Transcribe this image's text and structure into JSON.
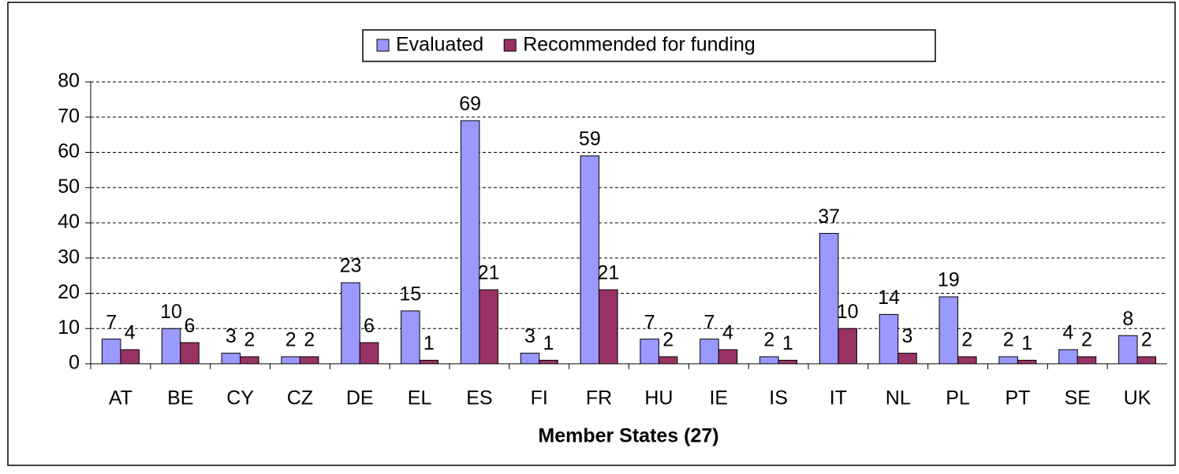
{
  "chart_data": {
    "type": "bar",
    "categories": [
      "AT",
      "BE",
      "CY",
      "CZ",
      "DE",
      "EL",
      "ES",
      "FI",
      "FR",
      "HU",
      "IE",
      "IS",
      "IT",
      "NL",
      "PL",
      "PT",
      "SE",
      "UK"
    ],
    "series": [
      {
        "name": "Evaluated",
        "color": "#9999ff",
        "values": [
          7,
          10,
          3,
          2,
          23,
          15,
          69,
          3,
          59,
          7,
          7,
          2,
          37,
          14,
          19,
          2,
          4,
          8
        ]
      },
      {
        "name": "Recommended for funding",
        "color": "#993366",
        "values": [
          4,
          6,
          2,
          2,
          6,
          1,
          21,
          1,
          21,
          2,
          4,
          1,
          10,
          3,
          2,
          1,
          2,
          2
        ]
      }
    ],
    "x_label": "Member States (27)",
    "ylim": [
      0,
      80
    ],
    "yticks": [
      0,
      10,
      20,
      30,
      40,
      50,
      60,
      70,
      80
    ],
    "grid": true,
    "legend": "top"
  }
}
